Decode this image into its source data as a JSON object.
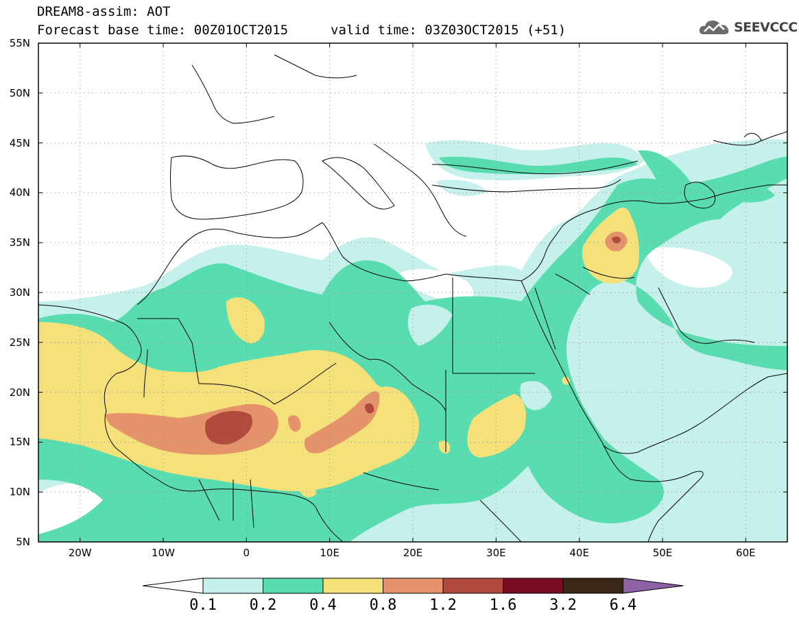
{
  "header": {
    "title_line1": "DREAM8-assim: AOT",
    "title_line2": "Forecast base time: 00Z01OCT2015",
    "valid_time": "valid time: 03Z03OCT2015 (+51)",
    "logo_text": "SEEVCCC",
    "logo_icon": "cloud-icon"
  },
  "axes": {
    "lat_labels": [
      "55N",
      "50N",
      "45N",
      "40N",
      "35N",
      "30N",
      "25N",
      "20N",
      "15N",
      "10N",
      "5N"
    ],
    "lon_labels": [
      "20W",
      "10W",
      "0",
      "10E",
      "20E",
      "30E",
      "40E",
      "50E",
      "60E"
    ]
  },
  "colorbar": {
    "labels": [
      "0.1",
      "0.2",
      "0.4",
      "0.8",
      "1.2",
      "1.6",
      "3.2",
      "6.4"
    ],
    "colors": [
      "#ffffff",
      "#c6f0ec",
      "#58dcb0",
      "#f5e17a",
      "#e5936a",
      "#b24a3e",
      "#7a0b24",
      "#3a2718",
      "#8c62a5"
    ]
  },
  "map": {
    "extent": {
      "lon": [
        -25,
        65
      ],
      "lat": [
        5,
        55
      ]
    },
    "grid": "dotted",
    "field": "AOT"
  }
}
